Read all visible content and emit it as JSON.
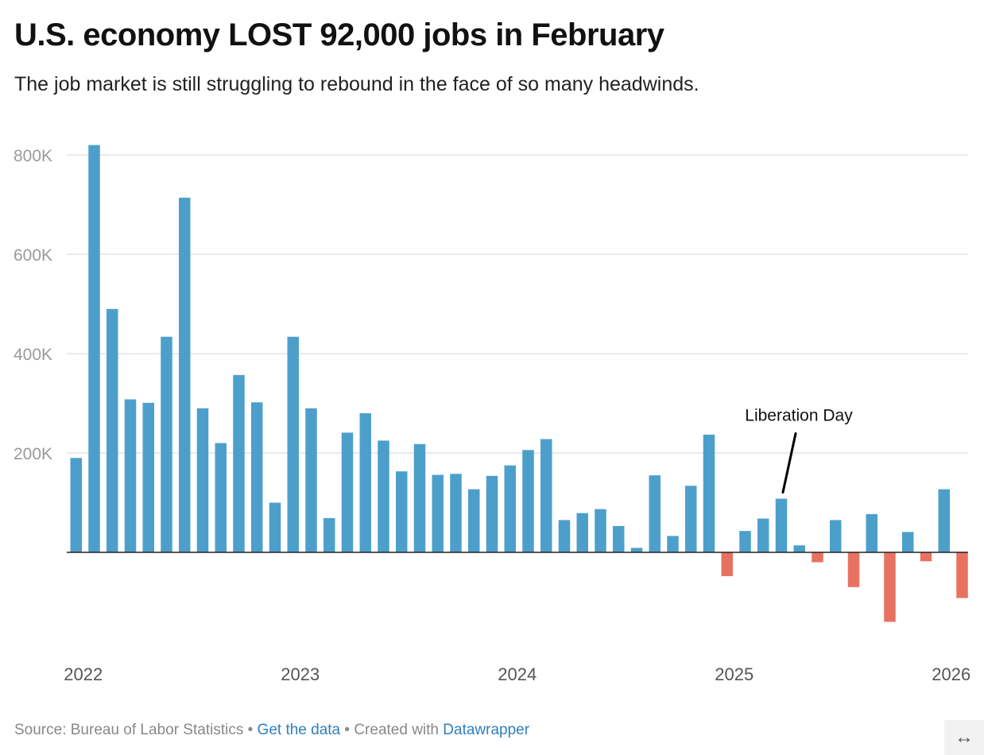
{
  "title": "U.S. economy LOST 92,000 jobs in February",
  "subtitle": "The job market is still struggling to rebound in the face of so many headwinds.",
  "chart_data": {
    "type": "bar",
    "title": "U.S. economy LOST 92,000 jobs in February",
    "subtitle": "The job market is still struggling to rebound in the face of so many headwinds.",
    "xlabel": "",
    "ylabel": "",
    "ylim": [
      -160000,
      850000
    ],
    "yticks": [
      {
        "value": 200000,
        "label": "200K"
      },
      {
        "value": 400000,
        "label": "400K"
      },
      {
        "value": 600000,
        "label": "600K"
      },
      {
        "value": 800000,
        "label": "800K"
      }
    ],
    "grid": true,
    "x_tick_labels": [
      {
        "index": 0,
        "label": "2022"
      },
      {
        "index": 12,
        "label": "2023"
      },
      {
        "index": 24,
        "label": "2024"
      },
      {
        "index": 36,
        "label": "2025"
      },
      {
        "index": 48,
        "label": "2026"
      }
    ],
    "categories": [
      "Jan 2022",
      "Feb 2022",
      "Mar 2022",
      "Apr 2022",
      "May 2022",
      "Jun 2022",
      "Jul 2022",
      "Aug 2022",
      "Sep 2022",
      "Oct 2022",
      "Nov 2022",
      "Dec 2022",
      "Jan 2023",
      "Feb 2023",
      "Mar 2023",
      "Apr 2023",
      "May 2023",
      "Jun 2023",
      "Jul 2023",
      "Aug 2023",
      "Sep 2023",
      "Oct 2023",
      "Nov 2023",
      "Dec 2023",
      "Jan 2024",
      "Feb 2024",
      "Mar 2024",
      "Apr 2024",
      "May 2024",
      "Jun 2024",
      "Jul 2024",
      "Aug 2024",
      "Sep 2024",
      "Oct 2024",
      "Nov 2024",
      "Dec 2024",
      "Jan 2025",
      "Feb 2025",
      "Mar 2025",
      "Apr 2025",
      "May 2025",
      "Jun 2025",
      "Jul 2025",
      "Aug 2025",
      "Sep 2025",
      "Oct 2025",
      "Nov 2025",
      "Dec 2025",
      "Jan 2026",
      "Feb 2026"
    ],
    "values": [
      190000,
      820000,
      490000,
      308000,
      301000,
      434000,
      714000,
      290000,
      220000,
      357000,
      302000,
      100000,
      434000,
      290000,
      69000,
      241000,
      280000,
      225000,
      163000,
      218000,
      156000,
      158000,
      127000,
      154000,
      175000,
      206000,
      228000,
      65000,
      79000,
      87000,
      53000,
      9000,
      155000,
      33000,
      134000,
      237000,
      -48000,
      43000,
      68000,
      108000,
      14000,
      -20000,
      65000,
      -70000,
      77000,
      -140000,
      41000,
      -18000,
      127000,
      -92000
    ],
    "colors": {
      "positive": "#4d9fcb",
      "negative": "#e87261",
      "zero_line": "#222222",
      "grid": "#e3e3e3"
    },
    "annotations": [
      {
        "text": "Liberation Day",
        "index": 39
      }
    ]
  },
  "footer": {
    "source": "Source: Bureau of Labor Statistics",
    "sep1": " • ",
    "get_data": "Get the data",
    "sep2": " • Created with ",
    "datawrapper": "Datawrapper"
  },
  "expand_icon": "↔"
}
